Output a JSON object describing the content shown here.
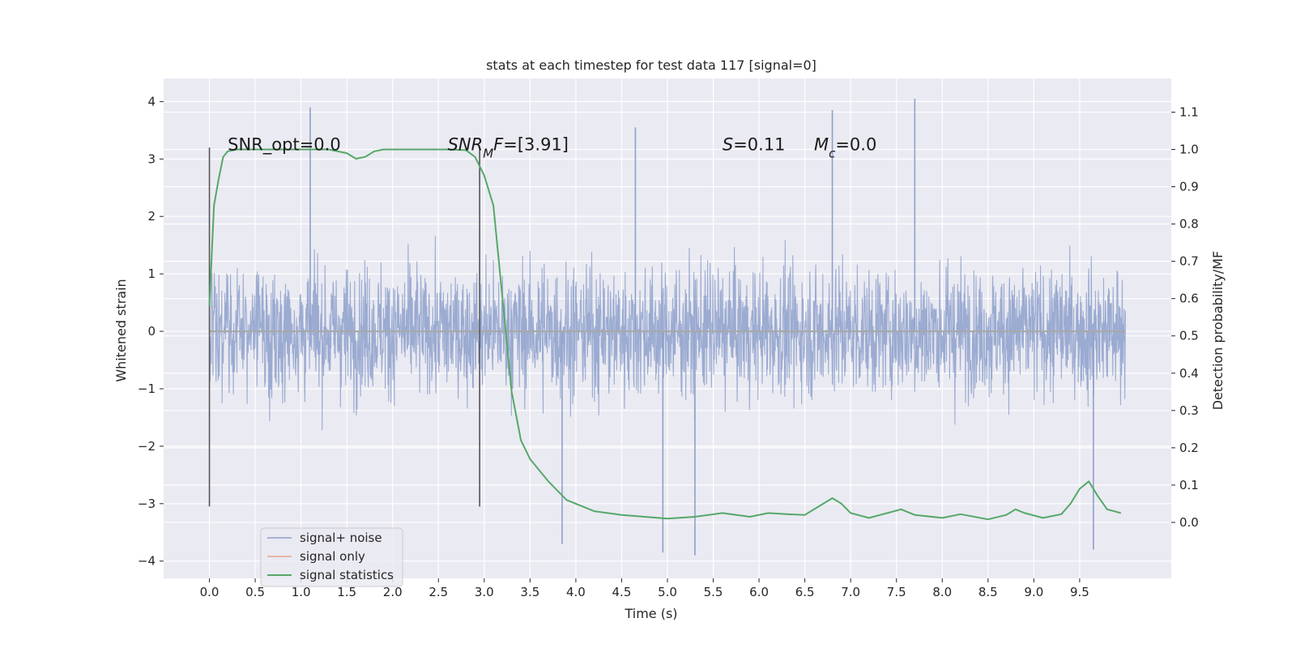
{
  "chart_data": {
    "type": "line",
    "title": "stats at each timestep for test data 117 [signal=0]",
    "xlabel": "Time (s)",
    "ylabel": "Whitened strain",
    "ylabel_right": "Detection probability/MF",
    "xlim": [
      -0.5,
      10.5
    ],
    "ylim": [
      -4.3,
      4.4
    ],
    "ylim_right": [
      -0.15,
      1.19
    ],
    "x_ticks": [
      0.0,
      0.5,
      1.0,
      1.5,
      2.0,
      2.5,
      3.0,
      3.5,
      4.0,
      4.5,
      5.0,
      5.5,
      6.0,
      6.5,
      7.0,
      7.5,
      8.0,
      8.5,
      9.0,
      9.5
    ],
    "x_tick_labels": [
      "0.0",
      "0.5",
      "1.0",
      "1.5",
      "2.0",
      "2.5",
      "3.0",
      "3.5",
      "4.0",
      "4.5",
      "5.0",
      "5.5",
      "6.0",
      "6.5",
      "7.0",
      "7.5",
      "8.0",
      "8.5",
      "9.0",
      "9.5"
    ],
    "y_ticks": [
      4,
      3,
      2,
      1,
      0,
      -1,
      -2,
      -3,
      -4
    ],
    "y_tick_labels": [
      "4",
      "3",
      "2",
      "1",
      "0",
      "−1",
      "−2",
      "−3",
      "−4"
    ],
    "y_right_ticks": [
      1.1,
      1.0,
      0.9,
      0.8,
      0.7,
      0.6,
      0.5,
      0.4,
      0.3,
      0.2,
      0.1,
      0.0
    ],
    "y_right_tick_labels": [
      "1.1",
      "1.0",
      "0.9",
      "0.8",
      "0.7",
      "0.6",
      "0.5",
      "0.4",
      "0.3",
      "0.2",
      "0.1",
      "0.0"
    ],
    "grid": true,
    "legend_position": "lower-left",
    "series": [
      {
        "name": "signal+ noise",
        "color": "#8da0cb",
        "style": "dense noise trace",
        "x_range": [
          0.0,
          10.0
        ],
        "approx_range": [
          -3.9,
          4.0
        ],
        "peak_markers": [
          {
            "x": 1.1,
            "y": 3.9
          },
          {
            "x": 7.7,
            "y": 4.05
          },
          {
            "x": 6.8,
            "y": 3.85
          },
          {
            "x": 4.65,
            "y": 3.55
          },
          {
            "x": 5.3,
            "y": -3.9
          },
          {
            "x": 9.65,
            "y": -3.8
          },
          {
            "x": 4.95,
            "y": -3.85
          },
          {
            "x": 3.85,
            "y": -3.7
          }
        ]
      },
      {
        "name": "signal only",
        "color": "#e5a58a",
        "x": [
          0.0,
          10.0
        ],
        "y": [
          0.0,
          0.0
        ]
      },
      {
        "name": "signal statistics",
        "color": "#55a868",
        "axis": "right",
        "x": [
          0.0,
          0.05,
          0.1,
          0.15,
          0.2,
          0.3,
          0.5,
          1.0,
          1.3,
          1.5,
          1.6,
          1.7,
          1.8,
          1.9,
          2.0,
          2.3,
          2.6,
          2.8,
          2.9,
          3.0,
          3.1,
          3.2,
          3.3,
          3.4,
          3.5,
          3.7,
          3.9,
          4.2,
          4.5,
          5.0,
          5.3,
          5.6,
          5.9,
          6.1,
          6.3,
          6.5,
          6.7,
          6.8,
          6.9,
          7.0,
          7.2,
          7.4,
          7.55,
          7.7,
          8.0,
          8.2,
          8.5,
          8.7,
          8.8,
          8.9,
          9.1,
          9.3,
          9.4,
          9.5,
          9.6,
          9.7,
          9.8,
          9.95
        ],
        "y": [
          0.58,
          0.85,
          0.92,
          0.98,
          0.995,
          1.0,
          1.0,
          1.0,
          1.0,
          0.99,
          0.975,
          0.98,
          0.995,
          1.0,
          1.0,
          1.0,
          1.0,
          0.998,
          0.98,
          0.93,
          0.85,
          0.6,
          0.35,
          0.22,
          0.17,
          0.11,
          0.06,
          0.03,
          0.02,
          0.01,
          0.015,
          0.025,
          0.015,
          0.025,
          0.022,
          0.02,
          0.05,
          0.065,
          0.05,
          0.025,
          0.012,
          0.025,
          0.035,
          0.02,
          0.012,
          0.022,
          0.008,
          0.02,
          0.035,
          0.025,
          0.012,
          0.022,
          0.05,
          0.09,
          0.11,
          0.07,
          0.035,
          0.025
        ]
      }
    ],
    "vertical_lines": [
      {
        "x": 0.0,
        "y_from": -3.05,
        "y_to": 3.2
      },
      {
        "x": 2.95,
        "y_from": -3.05,
        "y_to": 3.2
      }
    ],
    "annotations": [
      {
        "x": 0.2,
        "y": 3.15,
        "parts": [
          {
            "text": "SNR_opt=0.0",
            "italic": false
          }
        ]
      },
      {
        "x": 2.6,
        "y": 3.15,
        "parts": [
          {
            "text": "SNR",
            "italic": true
          },
          {
            "text": "M",
            "italic": true,
            "sub": true
          },
          {
            "text": "F",
            "italic": true
          },
          {
            "text": "=[3.91]",
            "italic": false
          }
        ]
      },
      {
        "x": 5.6,
        "y": 3.15,
        "parts": [
          {
            "text": "S",
            "italic": true
          },
          {
            "text": "=0.11",
            "italic": false
          }
        ]
      },
      {
        "x": 6.6,
        "y": 3.15,
        "parts": [
          {
            "text": "M",
            "italic": true
          },
          {
            "text": "c",
            "italic": true,
            "sub": true
          },
          {
            "text": "=0.0",
            "italic": false
          }
        ]
      }
    ],
    "colors": {
      "plot_background": "#eaeaf2",
      "grid": "#ffffff",
      "vline": "#555555",
      "legend_border": "#cccccc"
    }
  }
}
